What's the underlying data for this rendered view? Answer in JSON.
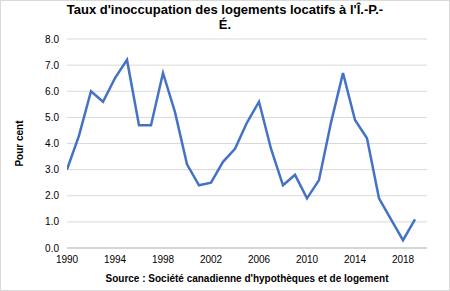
{
  "chart_data": {
    "type": "line",
    "title": "Taux d'inoccupation des logements locatifs à l'Î.-P.-É.",
    "x_label": "Source : Société canadienne d'hypothèques et de logement",
    "y_label": "Pour cent",
    "x": [
      1990,
      1991,
      1992,
      1993,
      1994,
      1995,
      1996,
      1997,
      1998,
      1999,
      2000,
      2001,
      2002,
      2003,
      2004,
      2005,
      2006,
      2007,
      2008,
      2009,
      2010,
      2011,
      2012,
      2013,
      2014,
      2015,
      2016,
      2017,
      2018,
      2019
    ],
    "values": [
      3.0,
      4.3,
      6.0,
      5.6,
      6.5,
      7.2,
      4.7,
      4.7,
      6.7,
      5.2,
      3.2,
      2.4,
      2.5,
      3.3,
      3.8,
      4.8,
      5.6,
      3.8,
      2.4,
      2.8,
      1.9,
      2.6,
      4.8,
      6.7,
      4.9,
      4.2,
      1.9,
      1.1,
      0.3,
      1.1
    ],
    "color": "#4472c4",
    "xlim": [
      1990,
      2020
    ],
    "xticks": [
      1990,
      1994,
      1998,
      2002,
      2006,
      2010,
      2014,
      2018
    ],
    "ylim": [
      0,
      8
    ],
    "yticks": [
      {
        "value": 0,
        "label": "0.0"
      },
      {
        "value": 1,
        "label": "1.0"
      },
      {
        "value": 2,
        "label": "2.0"
      },
      {
        "value": 3,
        "label": "3.0"
      },
      {
        "value": 4,
        "label": "4.0"
      },
      {
        "value": 5,
        "label": "5.0"
      },
      {
        "value": 6,
        "label": "6.0"
      },
      {
        "value": 7,
        "label": "7.0"
      },
      {
        "value": 8,
        "label": "8.0"
      }
    ],
    "grid": true
  }
}
